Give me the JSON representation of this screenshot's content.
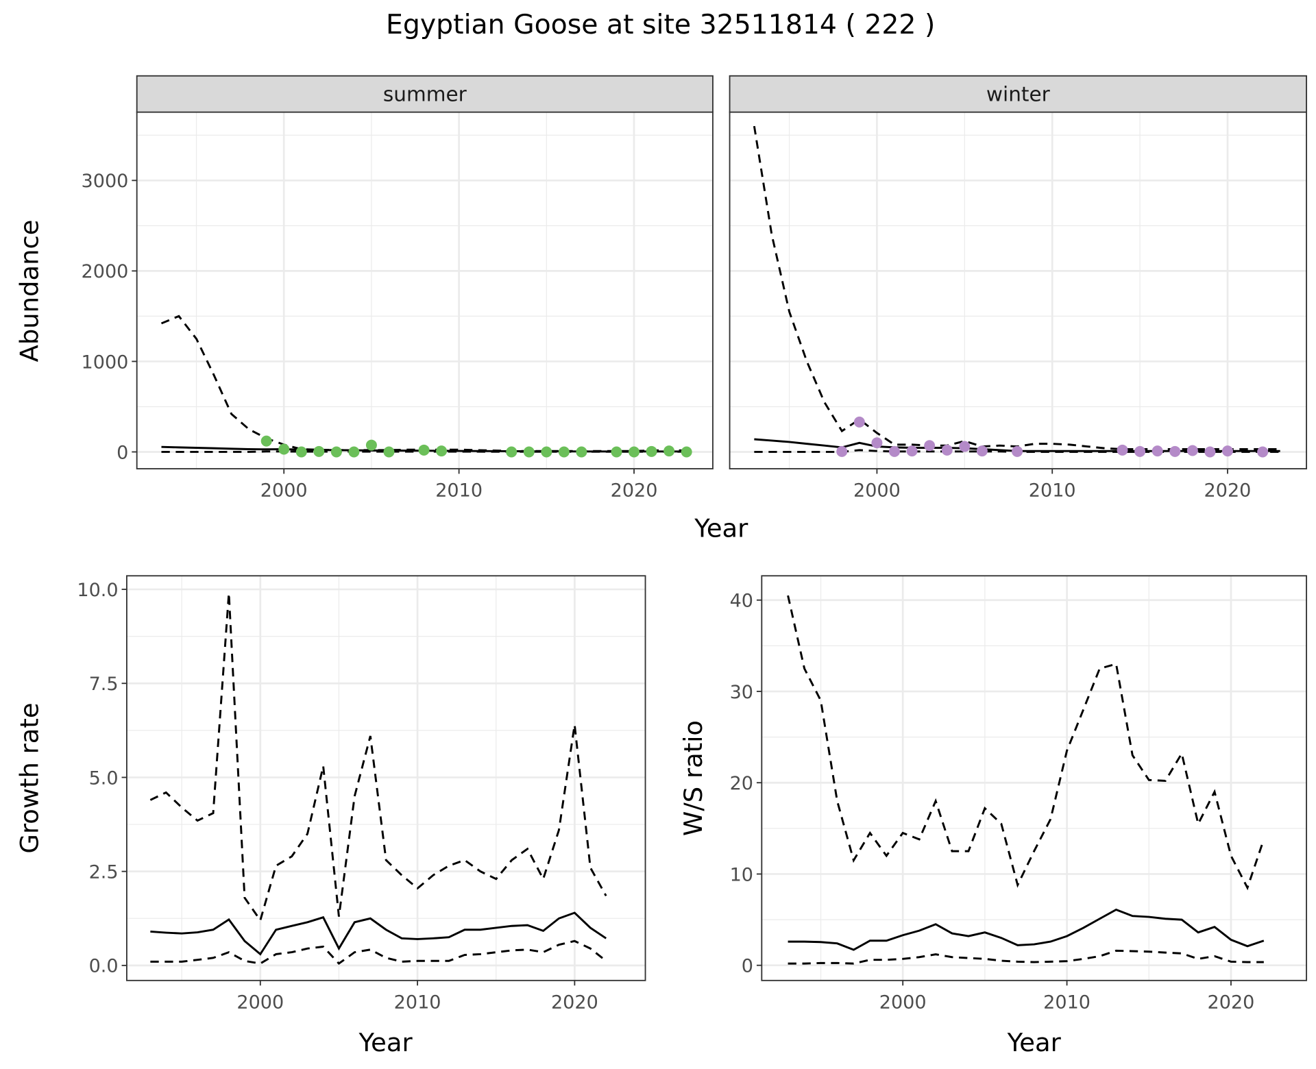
{
  "title": "Egyptian Goose at site 32511814 ( 222 )",
  "colors": {
    "summer_points": "#6bbf59",
    "winter_points": "#b48ac8",
    "line": "#000000",
    "strip_bg": "#d9d9d9",
    "grid": "#ebebeb"
  },
  "chart_data": [
    {
      "type": "line+scatter",
      "facet_strip": "summer",
      "xlabel": "Year",
      "ylabel": "Abundance",
      "xlim": [
        1991.6,
        2024.5
      ],
      "ylim": [
        -186,
        3755
      ],
      "xticks": [
        2000,
        2010,
        2020
      ],
      "yticks": [
        0,
        1000,
        2000,
        3000
      ],
      "x": [
        1993,
        1994,
        1995,
        1996,
        1997,
        1998,
        1999,
        2000,
        2001,
        2002,
        2003,
        2004,
        2005,
        2006,
        2007,
        2008,
        2009,
        2010,
        2011,
        2012,
        2013,
        2014,
        2015,
        2016,
        2017,
        2018,
        2019,
        2020,
        2021,
        2022,
        2023
      ],
      "series": [
        {
          "name": "estimate",
          "style": "solid",
          "values": [
            55,
            50,
            45,
            40,
            35,
            30,
            28,
            30,
            25,
            22,
            20,
            18,
            16,
            15,
            14,
            13,
            12,
            11,
            10,
            9,
            8,
            7,
            6,
            6,
            5,
            5,
            5,
            5,
            5,
            5,
            5
          ]
        },
        {
          "name": "upper",
          "style": "dashed",
          "values": [
            1420,
            1500,
            1250,
            850,
            420,
            250,
            150,
            80,
            30,
            25,
            20,
            20,
            20,
            20,
            25,
            25,
            25,
            25,
            20,
            15,
            10,
            10,
            10,
            10,
            10,
            10,
            10,
            10,
            15,
            20,
            15
          ]
        },
        {
          "name": "lower",
          "style": "dashed",
          "values": [
            0,
            0,
            0,
            0,
            0,
            0,
            5,
            5,
            3,
            3,
            3,
            3,
            3,
            3,
            3,
            3,
            3,
            3,
            3,
            2,
            2,
            2,
            2,
            2,
            2,
            2,
            2,
            2,
            2,
            2,
            2
          ]
        }
      ],
      "points": {
        "x": [
          1999,
          2000,
          2001,
          2002,
          2003,
          2004,
          2005,
          2006,
          2008,
          2009,
          2013,
          2014,
          2015,
          2016,
          2017,
          2019,
          2020,
          2021,
          2022,
          2023
        ],
        "y": [
          120,
          30,
          0,
          5,
          0,
          0,
          75,
          0,
          20,
          10,
          0,
          0,
          0,
          0,
          0,
          0,
          0,
          5,
          10,
          0
        ]
      }
    },
    {
      "type": "line+scatter",
      "facet_strip": "winter",
      "xlabel": "Year",
      "ylabel": "Abundance",
      "xlim": [
        1991.6,
        2024.5
      ],
      "ylim": [
        -186,
        3755
      ],
      "xticks": [
        2000,
        2010,
        2020
      ],
      "yticks": [
        0,
        1000,
        2000,
        3000
      ],
      "x": [
        1993,
        1994,
        1995,
        1996,
        1997,
        1998,
        1999,
        2000,
        2001,
        2002,
        2003,
        2004,
        2005,
        2006,
        2007,
        2008,
        2009,
        2010,
        2011,
        2012,
        2013,
        2014,
        2015,
        2016,
        2017,
        2018,
        2019,
        2020,
        2021,
        2022,
        2023
      ],
      "series": [
        {
          "name": "estimate",
          "style": "solid",
          "values": [
            140,
            125,
            110,
            90,
            70,
            50,
            100,
            60,
            50,
            45,
            45,
            45,
            40,
            30,
            20,
            10,
            10,
            10,
            10,
            10,
            10,
            10,
            10,
            10,
            10,
            10,
            10,
            10,
            10,
            10,
            10
          ]
        },
        {
          "name": "upper",
          "style": "dashed",
          "values": [
            3600,
            2400,
            1550,
            1000,
            550,
            230,
            360,
            210,
            80,
            80,
            70,
            70,
            120,
            60,
            70,
            60,
            90,
            90,
            80,
            60,
            40,
            30,
            30,
            30,
            30,
            30,
            30,
            30,
            30,
            30,
            30
          ]
        },
        {
          "name": "lower",
          "style": "dashed",
          "values": [
            0,
            0,
            0,
            0,
            0,
            0,
            20,
            10,
            5,
            5,
            5,
            5,
            5,
            5,
            5,
            0,
            0,
            0,
            0,
            0,
            0,
            0,
            0,
            0,
            0,
            0,
            0,
            0,
            0,
            0,
            0
          ]
        }
      ],
      "points": {
        "x": [
          1998,
          1999,
          2000,
          2001,
          2002,
          2003,
          2004,
          2005,
          2006,
          2008,
          2014,
          2015,
          2016,
          2017,
          2018,
          2019,
          2020,
          2022
        ],
        "y": [
          5,
          330,
          100,
          5,
          10,
          70,
          20,
          60,
          10,
          5,
          20,
          5,
          10,
          5,
          15,
          0,
          10,
          0
        ]
      }
    },
    {
      "type": "line",
      "xlabel": "Year",
      "ylabel": "Growth rate",
      "xlim": [
        1991.5,
        2024.5
      ],
      "ylim": [
        -0.4,
        10.36
      ],
      "xticks": [
        2000,
        2010,
        2020
      ],
      "yticks": [
        0,
        2.5,
        5,
        7.5,
        10
      ],
      "ytick_labels": [
        "0.0",
        "2.5",
        "5.0",
        "7.5",
        "10.0"
      ],
      "x": [
        1993,
        1994,
        1995,
        1996,
        1997,
        1998,
        1999,
        2000,
        2001,
        2002,
        2003,
        2004,
        2005,
        2006,
        2007,
        2008,
        2009,
        2010,
        2011,
        2012,
        2013,
        2014,
        2015,
        2016,
        2017,
        2018,
        2019,
        2020,
        2021,
        2022
      ],
      "series": [
        {
          "name": "estimate",
          "style": "solid",
          "values": [
            0.9,
            0.87,
            0.85,
            0.88,
            0.95,
            1.22,
            0.65,
            0.3,
            0.95,
            1.05,
            1.15,
            1.28,
            0.45,
            1.15,
            1.25,
            0.95,
            0.72,
            0.7,
            0.72,
            0.75,
            0.95,
            0.95,
            1.0,
            1.05,
            1.07,
            0.92,
            1.25,
            1.4,
            1.0,
            0.72
          ]
        },
        {
          "name": "upper",
          "style": "dashed",
          "values": [
            4.4,
            4.6,
            4.2,
            3.85,
            4.05,
            9.9,
            1.8,
            1.2,
            2.65,
            2.9,
            3.5,
            5.3,
            1.3,
            4.5,
            6.1,
            2.8,
            2.4,
            2.05,
            2.4,
            2.65,
            2.8,
            2.5,
            2.3,
            2.8,
            3.1,
            2.3,
            3.6,
            6.4,
            2.6,
            1.85
          ]
        },
        {
          "name": "lower",
          "style": "dashed",
          "values": [
            0.1,
            0.1,
            0.1,
            0.15,
            0.2,
            0.35,
            0.12,
            0.05,
            0.3,
            0.35,
            0.45,
            0.5,
            0.05,
            0.35,
            0.42,
            0.2,
            0.1,
            0.12,
            0.12,
            0.12,
            0.28,
            0.3,
            0.35,
            0.4,
            0.42,
            0.35,
            0.55,
            0.65,
            0.45,
            0.12
          ]
        }
      ]
    },
    {
      "type": "line",
      "xlabel": "Year",
      "ylabel": "W/S ratio",
      "xlim": [
        1991.4,
        2024.6
      ],
      "ylim": [
        -1.66,
        42.66
      ],
      "xticks": [
        2000,
        2010,
        2020
      ],
      "yticks": [
        0,
        10,
        20,
        30,
        40
      ],
      "x": [
        1993,
        1994,
        1995,
        1996,
        1997,
        1998,
        1999,
        2000,
        2001,
        2002,
        2003,
        2004,
        2005,
        2006,
        2007,
        2008,
        2009,
        2010,
        2011,
        2012,
        2013,
        2014,
        2015,
        2016,
        2017,
        2018,
        2019,
        2020,
        2021,
        2022
      ],
      "series": [
        {
          "name": "estimate",
          "style": "solid",
          "values": [
            2.6,
            2.6,
            2.55,
            2.4,
            1.7,
            2.7,
            2.7,
            3.3,
            3.8,
            4.5,
            3.5,
            3.2,
            3.6,
            3.0,
            2.2,
            2.3,
            2.6,
            3.2,
            4.1,
            5.1,
            6.1,
            5.4,
            5.3,
            5.1,
            5.0,
            3.6,
            4.2,
            2.8,
            2.1,
            2.7
          ]
        },
        {
          "name": "upper",
          "style": "dashed",
          "values": [
            40.5,
            32.5,
            29,
            18,
            11.5,
            14.5,
            12,
            14.5,
            13.8,
            18,
            12.5,
            12.5,
            17.2,
            15.5,
            8.8,
            12.5,
            16,
            23.5,
            28,
            32.5,
            33,
            23,
            20.3,
            20.2,
            23.2,
            15.5,
            19,
            12,
            8.5,
            13.8
          ]
        },
        {
          "name": "lower",
          "style": "dashed",
          "values": [
            0.2,
            0.2,
            0.25,
            0.25,
            0.2,
            0.6,
            0.6,
            0.7,
            0.9,
            1.2,
            0.9,
            0.8,
            0.7,
            0.5,
            0.4,
            0.35,
            0.4,
            0.45,
            0.7,
            1.0,
            1.6,
            1.55,
            1.5,
            1.4,
            1.3,
            0.7,
            1.0,
            0.4,
            0.35,
            0.35
          ]
        }
      ]
    }
  ]
}
